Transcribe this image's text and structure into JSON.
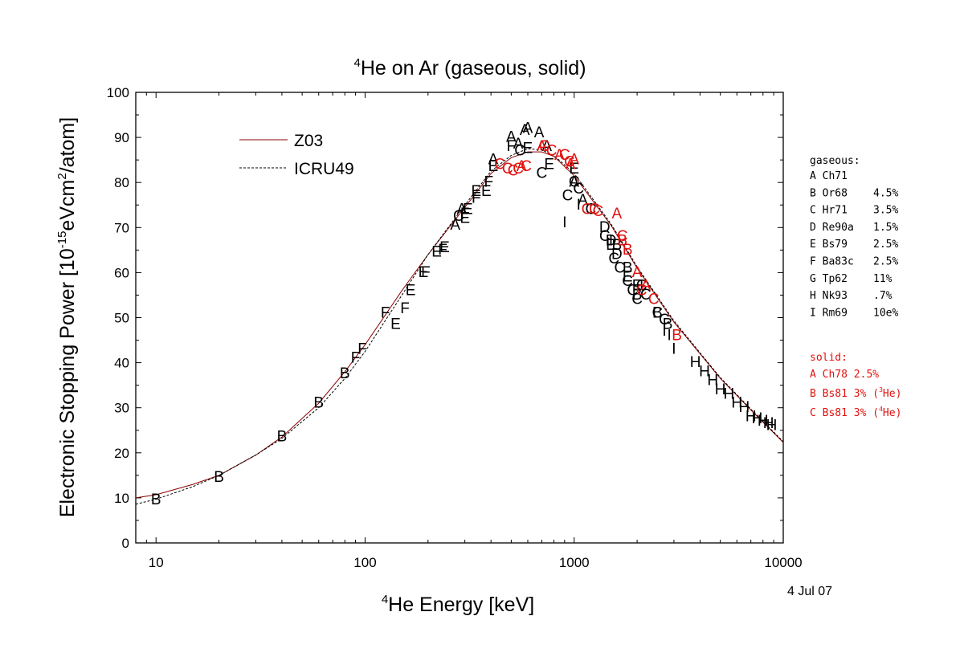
{
  "chart_data": {
    "type": "scatter",
    "title_sup": "4",
    "title_text": "He on Ar (gaseous, solid)",
    "xlabel_sup": "4",
    "xlabel_text": "He Energy [keV]",
    "ylabel_pre": "Electronic Stopping Power [10",
    "ylabel_sup": "-15",
    "ylabel_mid": "eVcm",
    "ylabel_sup2": "2",
    "ylabel_post": "/atom]",
    "x_scale": "log",
    "xlim": [
      8,
      10000
    ],
    "ylim": [
      0,
      100
    ],
    "x_ticks": [
      10,
      100,
      1000,
      10000
    ],
    "x_tick_labels": [
      "10",
      "100",
      "1000",
      "10000"
    ],
    "y_ticks": [
      0,
      10,
      20,
      30,
      40,
      50,
      60,
      70,
      80,
      90,
      100
    ],
    "y_tick_labels": [
      "0",
      "10",
      "20",
      "30",
      "40",
      "50",
      "60",
      "70",
      "80",
      "90",
      "100"
    ],
    "date": "4 Jul 07",
    "legend": [
      {
        "label": "Z03",
        "style": "solid",
        "color": "#8b0000"
      },
      {
        "label": "ICRU49",
        "style": "dashed",
        "color": "#000000"
      }
    ],
    "curves": [
      {
        "name": "Z03",
        "color": "#8b0000",
        "dash": false,
        "x": [
          8,
          10,
          15,
          20,
          30,
          40,
          60,
          80,
          100,
          150,
          200,
          300,
          400,
          500,
          600,
          700,
          800,
          1000,
          1500,
          2000,
          3000,
          4000,
          5000,
          7000,
          10000
        ],
        "y": [
          10,
          10.7,
          13,
          15,
          19.5,
          23.5,
          31,
          38,
          44,
          56,
          64,
          74.5,
          82,
          85.5,
          86.8,
          86.8,
          85.8,
          81.5,
          70.5,
          61,
          49,
          42,
          36.5,
          29.5,
          22.3
        ]
      },
      {
        "name": "ICRU49",
        "color": "#000000",
        "dash": true,
        "x": [
          8,
          10,
          15,
          20,
          30,
          40,
          60,
          80,
          100,
          150,
          200,
          300,
          400,
          500,
          600,
          700,
          800,
          1000,
          1500,
          2000,
          3000,
          4000,
          5000,
          7000,
          10000
        ],
        "y": [
          8.6,
          9.7,
          12.5,
          15,
          19.5,
          23.2,
          30,
          36.5,
          42.5,
          55,
          64,
          75,
          82.5,
          86,
          87.5,
          87.2,
          86,
          82,
          70.8,
          61.3,
          49.3,
          42.2,
          36.7,
          29.7,
          22.5
        ]
      }
    ],
    "gaseous_series": [
      {
        "letter": "A",
        "color": "#000000",
        "x": [
          270,
          290,
          410,
          500,
          540,
          580,
          600,
          680,
          740,
          1000,
          1100
        ],
        "y": [
          70.5,
          74,
          85,
          90,
          88.5,
          91.5,
          92,
          91,
          88,
          80,
          76
        ]
      },
      {
        "letter": "B",
        "color": "#000000",
        "x": [
          10,
          20,
          40,
          60,
          80,
          1600,
          1800,
          2000,
          2500,
          2800
        ],
        "y": [
          9.5,
          14.5,
          23.5,
          31,
          37.5,
          66,
          61,
          55,
          51,
          48.5
        ]
      },
      {
        "letter": "C",
        "color": "#000000",
        "x": [
          280,
          550,
          700,
          930,
          1000,
          1050,
          1200,
          1400,
          1550,
          1650,
          1800,
          1900,
          2000,
          2100,
          2200,
          2500,
          2700
        ],
        "y": [
          72.5,
          87,
          82,
          77,
          80,
          78.5,
          74,
          68,
          63,
          61,
          58,
          56,
          54,
          57,
          55,
          51,
          49.5
        ]
      },
      {
        "letter": "D",
        "color": "#000000",
        "x": [
          1400,
          1500,
          1600
        ],
        "y": [
          70,
          67,
          64
        ]
      },
      {
        "letter": "E",
        "color": "#000000",
        "x": [
          140,
          165,
          190,
          220,
          240,
          300,
          310,
          340,
          380,
          410,
          600,
          760,
          1000,
          1500,
          1800,
          2000
        ],
        "y": [
          48.5,
          56,
          60,
          64.5,
          65.5,
          72,
          74,
          78,
          78,
          83.5,
          87.5,
          84,
          83,
          66,
          59,
          57
        ]
      },
      {
        "letter": "F",
        "color": "#000000",
        "x": [
          90,
          97,
          125,
          155,
          195,
          235,
          300,
          340,
          390,
          500
        ],
        "y": [
          41,
          43,
          51,
          52,
          60,
          65,
          73,
          76.5,
          80,
          88
        ]
      },
      {
        "letter": "H",
        "color": "#000000",
        "x": [
          3800,
          4200,
          4600,
          5000,
          5500,
          6000,
          6500,
          7000,
          7500,
          8000,
          8500,
          8800
        ],
        "y": [
          40,
          38,
          36,
          34,
          33,
          31,
          30,
          28,
          27.5,
          27,
          26.5,
          26
        ]
      },
      {
        "letter": "I",
        "color": "#000000",
        "x": [
          900,
          1050,
          1500,
          2100,
          2700,
          2850,
          3000
        ],
        "y": [
          71,
          75,
          67,
          57,
          47,
          46,
          43
        ]
      }
    ],
    "solid_series": [
      {
        "letter": "A",
        "color": "#e0120f",
        "x": [
          560,
          700,
          850,
          960,
          1000,
          1600,
          2000,
          2200
        ],
        "y": [
          83.5,
          88,
          86,
          84,
          85,
          73,
          60,
          57
        ]
      },
      {
        "letter": "B",
        "color": "#e0120f",
        "x": [
          1700,
          1800,
          3100
        ],
        "y": [
          67,
          65,
          46
        ]
      },
      {
        "letter": "C",
        "color": "#e0120f",
        "x": [
          440,
          480,
          510,
          540,
          590,
          720,
          780,
          900,
          950,
          1150,
          1250,
          1300,
          1700,
          2100,
          2400
        ],
        "y": [
          84,
          83,
          82.5,
          83,
          83.5,
          88,
          87,
          86,
          84.5,
          74,
          74,
          73.5,
          68,
          56,
          54
        ]
      }
    ],
    "gaseous_title": "gaseous:",
    "gaseous_legend": [
      {
        "letter": "A",
        "ref": "Ch71",
        "err": ""
      },
      {
        "letter": "B",
        "ref": "Or68",
        "err": "4.5%"
      },
      {
        "letter": "C",
        "ref": "Hr71",
        "err": "3.5%"
      },
      {
        "letter": "D",
        "ref": "Re90a",
        "err": "1.5%"
      },
      {
        "letter": "E",
        "ref": "Bs79",
        "err": "2.5%"
      },
      {
        "letter": "F",
        "ref": "Ba83c",
        "err": "2.5%"
      },
      {
        "letter": "G",
        "ref": "Tp62",
        "err": "11%"
      },
      {
        "letter": "H",
        "ref": "Nk93",
        "err": ".7%"
      },
      {
        "letter": "I",
        "ref": "Rm69",
        "err": "10e%"
      }
    ],
    "solid_title": "solid:",
    "solid_legend": [
      {
        "letter": "A",
        "ref": "Ch78",
        "err": "2.5%",
        "iso": "",
        "iso_sup": "",
        "iso_post": ""
      },
      {
        "letter": "B",
        "ref": "Bs81",
        "err": "3%",
        "iso": "(",
        "iso_sup": "3",
        "iso_post": "He)"
      },
      {
        "letter": "C",
        "ref": "Bs81",
        "err": "3%",
        "iso": "(",
        "iso_sup": "4",
        "iso_post": "He)"
      }
    ],
    "colors": {
      "solid": "#e0120f",
      "gaseous": "#000000",
      "z03": "#8b0000"
    }
  }
}
